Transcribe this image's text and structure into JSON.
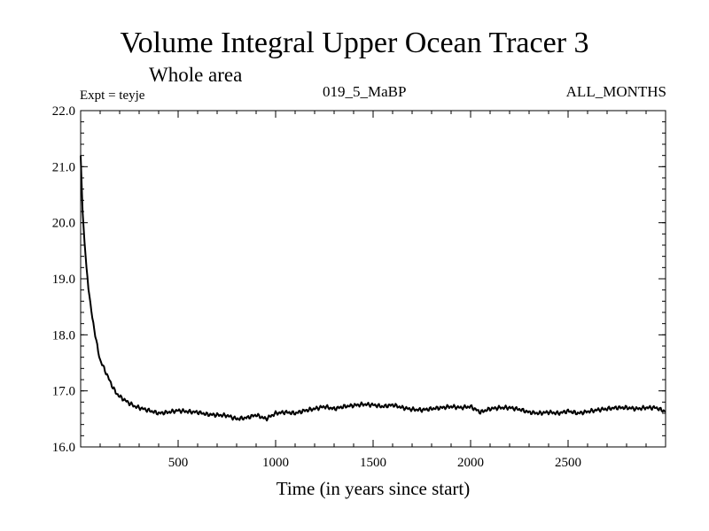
{
  "chart_data": {
    "type": "line",
    "title": "Volume Integral Upper Ocean Tracer 3",
    "subtitle": "Whole area",
    "experiment_label": "Expt = teyje",
    "period_label": "019_5_MaBP",
    "months_label": "ALL_MONTHS",
    "xlabel": "Time (in years since start)",
    "ylabel": "",
    "xlim": [
      0,
      3000
    ],
    "ylim": [
      16.0,
      22.0
    ],
    "xticks": [
      500,
      1000,
      1500,
      2000,
      2500
    ],
    "xtick_labels": [
      "500",
      "1000",
      "1500",
      "2000",
      "2500"
    ],
    "yticks": [
      16.0,
      17.0,
      18.0,
      19.0,
      20.0,
      21.0,
      22.0
    ],
    "ytick_labels": [
      "16.0",
      "17.0",
      "18.0",
      "19.0",
      "20.0",
      "21.0",
      "22.0"
    ],
    "grid": false,
    "series": [
      {
        "name": "Tracer 3",
        "color": "#000000",
        "x": [
          0,
          10,
          20,
          30,
          40,
          50,
          60,
          70,
          80,
          90,
          100,
          120,
          140,
          160,
          180,
          200,
          220,
          250,
          280,
          300,
          350,
          400,
          450,
          500,
          550,
          600,
          650,
          700,
          750,
          800,
          850,
          900,
          950,
          1000,
          1050,
          1100,
          1150,
          1200,
          1250,
          1300,
          1350,
          1400,
          1450,
          1500,
          1550,
          1600,
          1650,
          1700,
          1750,
          1800,
          1850,
          1900,
          1950,
          2000,
          2050,
          2100,
          2150,
          2200,
          2250,
          2300,
          2350,
          2400,
          2450,
          2500,
          2550,
          2600,
          2650,
          2700,
          2750,
          2800,
          2850,
          2900,
          2950,
          3000
        ],
        "values": [
          21.2,
          20.2,
          19.65,
          19.2,
          18.85,
          18.55,
          18.3,
          18.1,
          17.9,
          17.7,
          17.55,
          17.4,
          17.25,
          17.1,
          16.97,
          16.9,
          16.85,
          16.78,
          16.72,
          16.7,
          16.65,
          16.6,
          16.62,
          16.65,
          16.63,
          16.62,
          16.58,
          16.57,
          16.56,
          16.5,
          16.52,
          16.57,
          16.5,
          16.6,
          16.62,
          16.6,
          16.65,
          16.68,
          16.72,
          16.68,
          16.72,
          16.74,
          16.76,
          16.75,
          16.72,
          16.75,
          16.7,
          16.67,
          16.66,
          16.68,
          16.7,
          16.72,
          16.7,
          16.72,
          16.62,
          16.68,
          16.7,
          16.7,
          16.67,
          16.62,
          16.6,
          16.62,
          16.6,
          16.64,
          16.6,
          16.63,
          16.66,
          16.68,
          16.7,
          16.7,
          16.68,
          16.7,
          16.7,
          16.63
        ]
      }
    ]
  }
}
